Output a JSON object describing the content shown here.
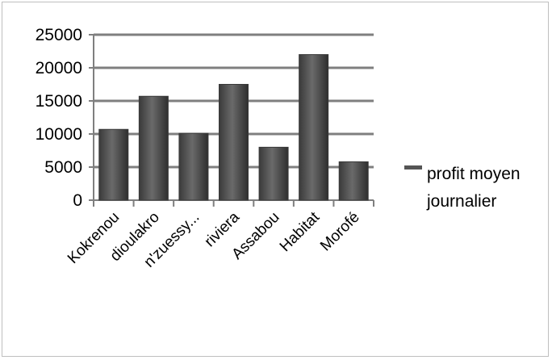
{
  "chart_data": {
    "type": "bar",
    "title": "",
    "xlabel": "",
    "ylabel": "",
    "categories": [
      "Kokrenou",
      "dioulakro",
      "n'zuessy...",
      "riviera",
      "Assabou",
      "Habitat",
      "Morofé"
    ],
    "series": [
      {
        "name": "profit moyen journalier",
        "values": [
          10700,
          15700,
          10100,
          17500,
          8000,
          22000,
          5800
        ]
      }
    ],
    "ylim": [
      0,
      25000
    ],
    "yticks": [
      0,
      5000,
      10000,
      15000,
      20000,
      25000
    ],
    "grid": true,
    "legend": "right",
    "bar_color": "#555555",
    "grid_color": "#7f7f7f"
  }
}
